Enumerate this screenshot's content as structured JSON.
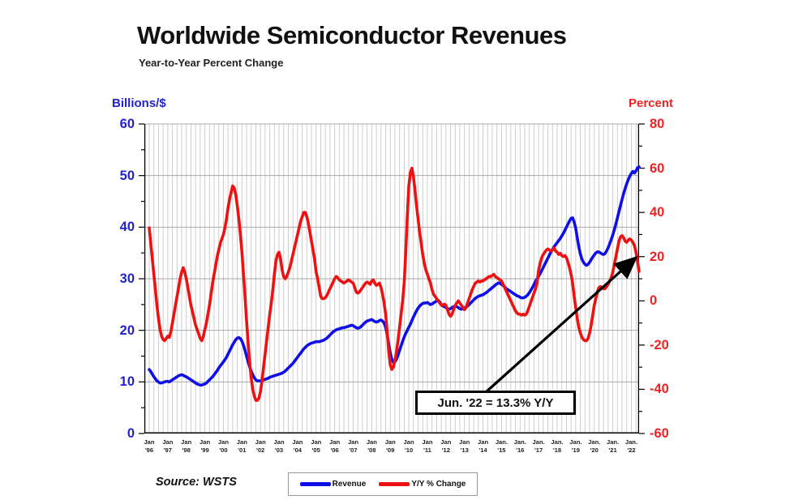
{
  "header": {
    "title": "Worldwide Semiconductor Revenues",
    "subtitle": "Year-to-Year Percent Change"
  },
  "left_axis": {
    "title": "Billions/$",
    "color": "#2222cc",
    "ticks": [
      60,
      50,
      40,
      30,
      20,
      10,
      0
    ]
  },
  "right_axis": {
    "title": "Percent",
    "color": "#ee2222",
    "ticks": [
      80,
      60,
      40,
      20,
      0,
      -20,
      -40,
      -60
    ]
  },
  "x_axis": {
    "labels": [
      "Jan\n'96",
      "Jan\n'97",
      "Jan\n'98",
      "Jan\n'99",
      "Jan\n'00",
      "Jan\n'01",
      "Jan\n'02",
      "Jan\n'03",
      "Jan\n'04",
      "Jan\n'05",
      "Jan\n'06",
      "Jan\n'07",
      "Jan\n'08",
      "Jan\n'09",
      "Jan\n'10",
      "Jan\n'11",
      "Jan\n'12",
      "Jan\n'13",
      "Jan\n'14",
      "Jan.\n'15",
      "Jan.\n'16",
      "Jan.\n'17",
      "Jan.\n'18",
      "Jan.\n'19",
      "Jan.\n'20",
      "Jan.\n'21",
      "Jan.\n'22"
    ]
  },
  "annotation": {
    "text": "Jun. '22 = 13.3% Y/Y"
  },
  "legend": [
    {
      "label": "Revenue",
      "color": "#0f0fe8"
    },
    {
      "label": "Y/Y % Change",
      "color": "#ee1111"
    }
  ],
  "source": "Source: WSTS",
  "chart_data": {
    "type": "line",
    "title": "Worldwide Semiconductor Revenues",
    "subtitle": "Year-to-Year Percent Change",
    "frequency": "monthly",
    "x_start": "Jan 1996",
    "x_end": "Jun 2022",
    "left_axis_label": "Billions/$",
    "right_axis_label": "Percent",
    "left_axis_range": [
      0,
      60
    ],
    "right_axis_range": [
      -60,
      80
    ],
    "grid": {
      "vertical": "quarterly",
      "horizontal": "every 10 on left axis"
    },
    "legend_position": "bottom-center",
    "annotation": {
      "text": "Jun. '22 = 13.3% Y/Y",
      "points_to": "end of Y/Y % Change line"
    },
    "series": [
      {
        "name": "Revenue",
        "axis": "left",
        "unit": "US$ billions (monthly, 3-mo avg)",
        "color": "#0f0fe8",
        "values": [
          12.4,
          12.0,
          11.5,
          11.0,
          10.6,
          10.2,
          10.0,
          9.8,
          9.8,
          9.9,
          10.0,
          10.1,
          10.1,
          10.0,
          10.2,
          10.4,
          10.6,
          10.8,
          11.0,
          11.2,
          11.3,
          11.4,
          11.3,
          11.1,
          11.0,
          10.8,
          10.6,
          10.4,
          10.2,
          10.0,
          9.8,
          9.6,
          9.5,
          9.4,
          9.4,
          9.5,
          9.6,
          9.8,
          10.1,
          10.4,
          10.7,
          11.0,
          11.4,
          11.8,
          12.2,
          12.7,
          13.1,
          13.5,
          13.9,
          14.3,
          14.8,
          15.4,
          16.0,
          16.6,
          17.2,
          17.7,
          18.2,
          18.5,
          18.6,
          18.4,
          17.9,
          17.1,
          16.1,
          15.0,
          13.9,
          12.9,
          12.1,
          11.4,
          10.8,
          10.4,
          10.2,
          10.2,
          10.2,
          10.3,
          10.4,
          10.5,
          10.6,
          10.7,
          10.9,
          11.0,
          11.1,
          11.2,
          11.3,
          11.4,
          11.5,
          11.6,
          11.7,
          11.9,
          12.1,
          12.4,
          12.7,
          13.0,
          13.3,
          13.6,
          14.0,
          14.4,
          14.8,
          15.2,
          15.6,
          16.0,
          16.4,
          16.7,
          17.0,
          17.2,
          17.4,
          17.5,
          17.6,
          17.7,
          17.8,
          17.8,
          17.8,
          17.9,
          18.0,
          18.1,
          18.3,
          18.5,
          18.8,
          19.1,
          19.4,
          19.7,
          19.9,
          20.1,
          20.2,
          20.3,
          20.4,
          20.5,
          20.5,
          20.6,
          20.7,
          20.8,
          20.9,
          21.0,
          20.9,
          20.7,
          20.5,
          20.4,
          20.5,
          20.7,
          21.0,
          21.3,
          21.6,
          21.8,
          21.9,
          22.0,
          22.1,
          21.9,
          21.7,
          21.6,
          21.7,
          21.9,
          22.0,
          21.8,
          21.4,
          20.6,
          19.2,
          17.3,
          15.6,
          14.4,
          13.8,
          13.9,
          14.4,
          15.2,
          16.1,
          17.0,
          17.9,
          18.7,
          19.4,
          20.0,
          20.6,
          21.2,
          21.9,
          22.6,
          23.2,
          23.8,
          24.3,
          24.7,
          25.0,
          25.2,
          25.3,
          25.3,
          25.4,
          25.2,
          25.0,
          25.1,
          25.3,
          25.5,
          25.7,
          25.8,
          25.5,
          25.0,
          24.7,
          24.6,
          24.4,
          24.2,
          24.1,
          24.2,
          24.4,
          24.6,
          24.7,
          24.6,
          24.4,
          24.2,
          24.1,
          24.2,
          24.3,
          24.5,
          24.7,
          25.0,
          25.3,
          25.6,
          25.9,
          26.2,
          26.4,
          26.6,
          26.7,
          26.8,
          26.9,
          27.1,
          27.3,
          27.5,
          27.8,
          28.0,
          28.3,
          28.5,
          28.8,
          29.0,
          29.2,
          29.1,
          28.9,
          28.7,
          28.4,
          28.1,
          27.9,
          27.7,
          27.5,
          27.3,
          27.1,
          26.9,
          26.7,
          26.6,
          26.4,
          26.3,
          26.3,
          26.4,
          26.6,
          26.9,
          27.3,
          27.8,
          28.3,
          28.9,
          29.5,
          30.0,
          30.5,
          31.0,
          31.6,
          32.2,
          32.8,
          33.4,
          34.0,
          34.6,
          35.2,
          35.7,
          36.2,
          36.6,
          37.0,
          37.4,
          37.8,
          38.3,
          38.8,
          39.4,
          40.0,
          40.6,
          41.2,
          41.7,
          41.8,
          41.0,
          39.8,
          37.9,
          36.2,
          34.8,
          33.8,
          33.2,
          32.8,
          32.6,
          32.8,
          33.2,
          33.7,
          34.2,
          34.6,
          35.0,
          35.2,
          35.2,
          35.0,
          34.8,
          34.7,
          34.9,
          35.4,
          36.0,
          36.8,
          37.6,
          38.5,
          39.5,
          40.6,
          41.8,
          43.0,
          44.2,
          45.4,
          46.5,
          47.5,
          48.4,
          49.2,
          49.9,
          50.4,
          50.8,
          50.5,
          50.9,
          51.5,
          51.7
        ]
      },
      {
        "name": "Y/Y % Change",
        "axis": "right",
        "unit": "percent",
        "color": "#ee1111",
        "values": [
          33,
          26,
          19,
          12,
          5,
          -2,
          -8,
          -13,
          -16,
          -17.5,
          -18,
          -17,
          -16,
          -16.5,
          -14,
          -10,
          -6,
          -2,
          2,
          6,
          10,
          13,
          15,
          13,
          10,
          6,
          2,
          -2,
          -5,
          -8,
          -11,
          -13,
          -15,
          -17,
          -18,
          -16,
          -13,
          -10,
          -6,
          -2,
          3,
          8,
          12,
          16,
          20,
          23,
          26,
          28,
          30,
          33,
          37,
          42,
          46,
          49,
          52,
          51,
          48,
          43,
          37,
          30,
          22,
          12,
          2,
          -9,
          -19,
          -28,
          -35,
          -40,
          -43,
          -45,
          -45,
          -44,
          -41,
          -36,
          -30,
          -24,
          -18,
          -12,
          -6,
          -1,
          5,
          12,
          18,
          21,
          22,
          19,
          14,
          11,
          10,
          11,
          13,
          15,
          18,
          21,
          24,
          27,
          30,
          33,
          36,
          38,
          40,
          40,
          38,
          35,
          31,
          27,
          23,
          19,
          13,
          10,
          6,
          2,
          1,
          1,
          1.5,
          2.5,
          4,
          5.5,
          7,
          8.5,
          10,
          11,
          10.5,
          9.5,
          9,
          8.5,
          8,
          8.5,
          9,
          9.5,
          9,
          8.5,
          8,
          6,
          4,
          3.5,
          4,
          5,
          6,
          7,
          8,
          8.5,
          8,
          7.5,
          9,
          9.5,
          8,
          7,
          7.5,
          8,
          6,
          3,
          -1,
          -6,
          -14,
          -23,
          -29,
          -31,
          -30,
          -27,
          -23,
          -18,
          -12,
          -6,
          0,
          8,
          22,
          38,
          52,
          58,
          60,
          56,
          50,
          43,
          37,
          31,
          26,
          21,
          17,
          14,
          12,
          10,
          8,
          5,
          3,
          2,
          1,
          0,
          -1,
          -2,
          -2,
          -1.5,
          -2,
          -4,
          -6,
          -7,
          -6,
          -4,
          -2,
          -1,
          0,
          -1,
          -2,
          -3,
          -4,
          -3,
          -1,
          1,
          3,
          5,
          6.5,
          8,
          8.5,
          9,
          8.5,
          9,
          9,
          9.5,
          10,
          10.5,
          11,
          11,
          11.5,
          12,
          11,
          10.5,
          10,
          9.5,
          9,
          7.5,
          6,
          4.5,
          3,
          1.5,
          0,
          -1.5,
          -3,
          -4.5,
          -5.5,
          -6,
          -6,
          -6.5,
          -6,
          -6.5,
          -6,
          -4.5,
          -2.5,
          -0.5,
          1.5,
          3.5,
          5.5,
          8,
          14,
          17,
          19.5,
          21,
          22,
          23,
          23.5,
          23,
          22.5,
          23,
          24,
          22.5,
          22,
          21,
          21.5,
          20.5,
          20,
          20.5,
          19.5,
          17.5,
          15,
          12,
          8,
          2,
          -3,
          -8,
          -12,
          -14.5,
          -16.5,
          -17.5,
          -18,
          -18,
          -17,
          -14.5,
          -11,
          -6.5,
          -2,
          1,
          4,
          6,
          6.5,
          6,
          5.5,
          5.5,
          6.5,
          7.5,
          9,
          10.5,
          13,
          16.5,
          20,
          23.5,
          27,
          29,
          29.5,
          28.5,
          27,
          26.5,
          27.5,
          28,
          27.5,
          26.5,
          25,
          22,
          18,
          13.3
        ]
      }
    ]
  }
}
